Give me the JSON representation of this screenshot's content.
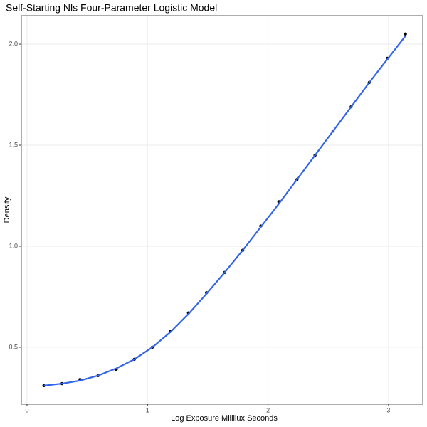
{
  "chart_data": {
    "type": "scatter",
    "title": "Self-Starting Nls Four-Parameter Logistic Model",
    "x_label": "Log Exposure Millilux Seconds",
    "y_label": "Density",
    "x": [
      0.14,
      0.29,
      0.44,
      0.59,
      0.74,
      0.89,
      1.04,
      1.19,
      1.34,
      1.49,
      1.64,
      1.79,
      1.94,
      2.09,
      2.24,
      2.39,
      2.54,
      2.69,
      2.84,
      2.99,
      3.14
    ],
    "series": [
      {
        "mode": "points",
        "color": "#000000",
        "values": [
          0.31,
          0.32,
          0.34,
          0.36,
          0.39,
          0.44,
          0.5,
          0.58,
          0.67,
          0.77,
          0.87,
          0.98,
          1.1,
          1.22,
          1.33,
          1.45,
          1.57,
          1.69,
          1.81,
          1.93,
          2.05
        ]
      },
      {
        "mode": "line",
        "color": "#3366e6",
        "values": [
          0.31,
          0.32,
          0.335,
          0.36,
          0.395,
          0.44,
          0.5,
          0.575,
          0.665,
          0.765,
          0.87,
          0.98,
          1.095,
          1.21,
          1.33,
          1.45,
          1.57,
          1.69,
          1.81,
          1.925,
          2.04
        ]
      }
    ],
    "xlim": [
      -0.047,
      3.284
    ],
    "ylim": [
      0.218,
      2.141
    ],
    "xticks": [
      0,
      1,
      2,
      3
    ],
    "yticks": [
      0.5,
      {
        "value": 1,
        "label": "1.0"
      },
      1.5,
      {
        "value": 2,
        "label": "2.0"
      }
    ],
    "grid": true
  }
}
